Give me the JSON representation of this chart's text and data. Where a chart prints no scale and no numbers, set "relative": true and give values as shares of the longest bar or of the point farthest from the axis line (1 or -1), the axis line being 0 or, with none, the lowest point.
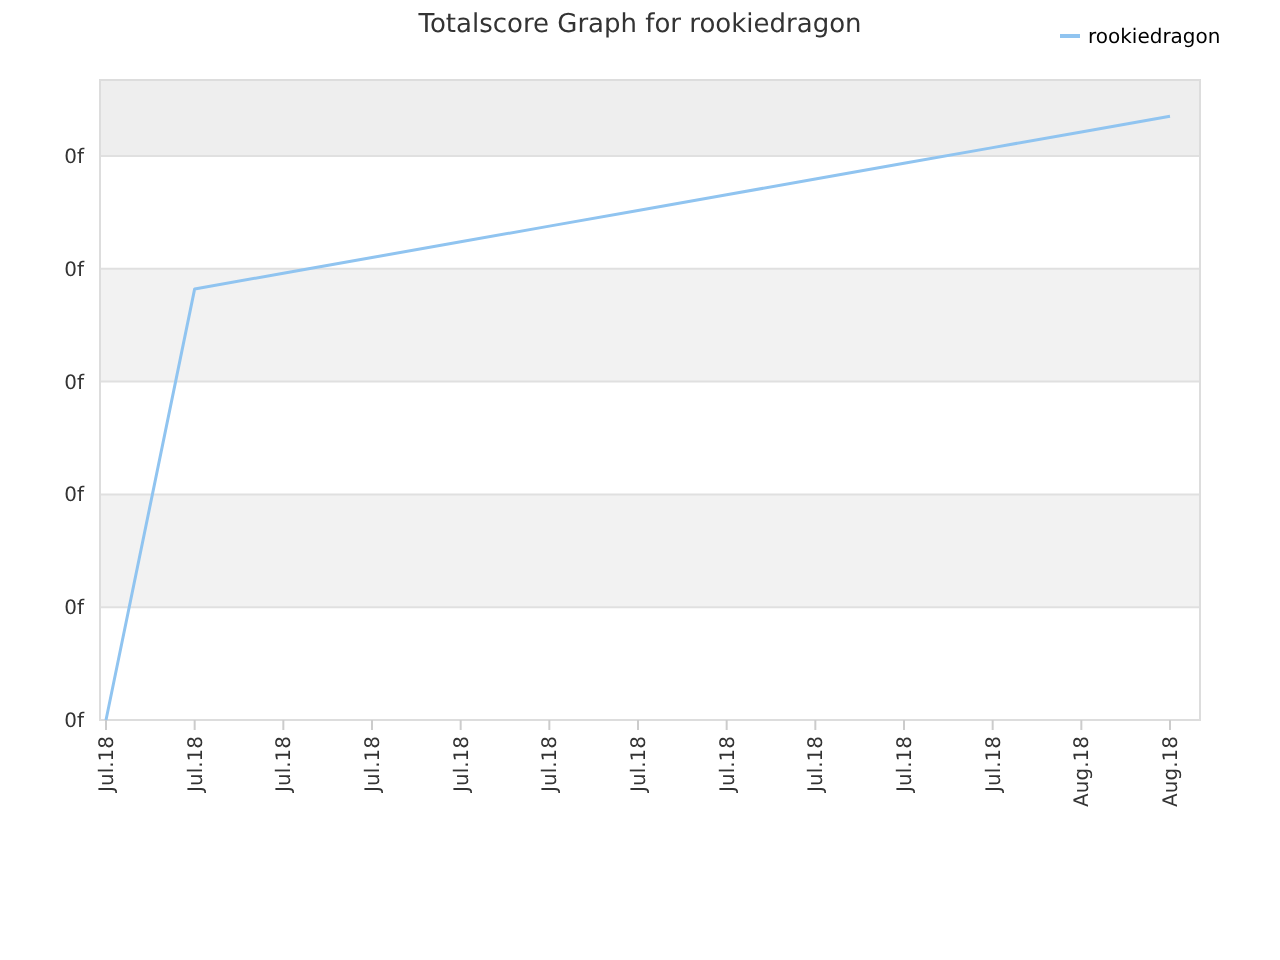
{
  "chart_data": {
    "type": "line",
    "title": "Totalscore Graph for rookiedragon",
    "relative": true,
    "categories": [
      "Jul.18",
      "Jul.18",
      "Jul.18",
      "Jul.18",
      "Jul.18",
      "Jul.18",
      "Jul.18",
      "Jul.18",
      "Jul.18",
      "Jul.18",
      "Jul.18",
      "Aug.18",
      "Aug.18"
    ],
    "series": [
      {
        "name": "rookiedragon",
        "color": "#90c4f0",
        "values": [
          0,
          0.714,
          0.74,
          0.766,
          0.792,
          0.818,
          0.844,
          0.87,
          0.896,
          0.922,
          0.948,
          0.974,
          1
        ]
      }
    ],
    "annotations": [
      "0f",
      "0f",
      "0f",
      "0f",
      "0f",
      "0f"
    ],
    "grid": "y",
    "legend": "top right",
    "marker": "none",
    "line_style": "solid"
  }
}
